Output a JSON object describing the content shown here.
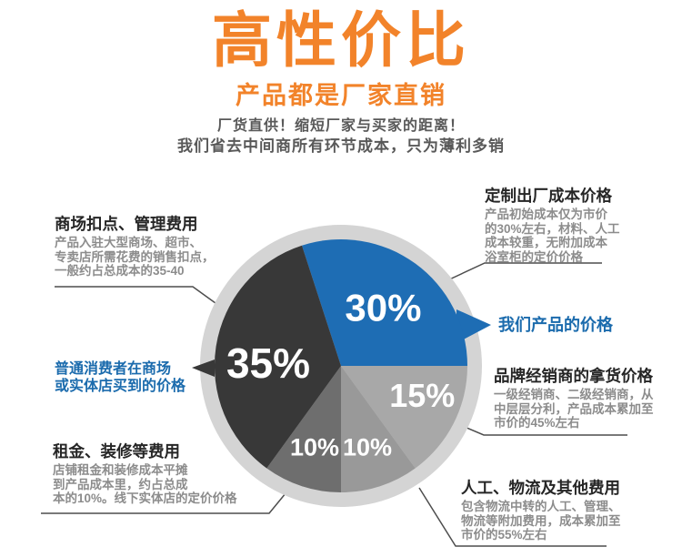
{
  "header": {
    "title": "高性价比",
    "subtitle": "产品都是厂家直销",
    "tagline1": "厂货直供！缩短厂家与买家的距离！",
    "tagline2": "我们省去中间商所有环节成本，只为薄利多销"
  },
  "colors": {
    "accent_orange": "#f2832a",
    "accent_blue": "#1b6bad",
    "title_text": "#262626",
    "body_text": "#8c8c8c",
    "tagline_text": "#595959",
    "ring": "#d4d4d4",
    "connector_line": "#4d4d4d"
  },
  "chart_data": {
    "type": "pie",
    "start_angle_deg": -18,
    "legend_position": "callouts-around-pie",
    "slices": [
      {
        "label": "30%",
        "value": 30,
        "color": "#1e6db4",
        "linked_annotation": "定制出厂成本价格 / 我们产品的价格"
      },
      {
        "label": "15%",
        "value": 15,
        "color": "#a8a8a8",
        "linked_annotation": "品牌经销商的拿货价格"
      },
      {
        "label": "10%",
        "value": 10,
        "color": "#999999",
        "linked_annotation": "人工、物流及其他费用"
      },
      {
        "label": "10%",
        "value": 10,
        "color": "#6e6e6e",
        "linked_annotation": "租金、装修等费用"
      },
      {
        "label": "35%",
        "value": 35,
        "color": "#383838",
        "linked_annotation": "商场扣点、管理费用 / 普通消费者在商场或实体店买到的价格"
      }
    ]
  },
  "annotations": {
    "market_fee": {
      "title": "商场扣点、管理费用",
      "body": "产品入驻大型商场、超市、\n专卖店所需花费的销售扣点，\n一般约占总成本的35-40"
    },
    "consumer_price": {
      "label": "普通消费者在商场\n或实体店买到的价格"
    },
    "rent_fee": {
      "title": "租金、装修等费用",
      "body": "店铺租金和装修成本平摊\n到产品成本里，约占总成\n本的10%。线下实体店的定价价格"
    },
    "factory_cost": {
      "title": "定制出厂成本价格",
      "body": "产品初始成本仅为市价\n的30%左右，材料、人工\n成本较重，无附加成本\n浴室柜的定价价格"
    },
    "our_price": {
      "label": "我们产品的价格"
    },
    "dealer_price": {
      "title": "品牌经销商的拿货价格",
      "body": "一级经销商、二级经销商，从\n中层层分利，产品成本累加至\n市价的45%左右"
    },
    "logistics_fee": {
      "title": "人工、物流及其他费用",
      "body": "包含物流中转的人工、管理、\n物流等附加费用，成本累加至\n市价的55%左右"
    }
  }
}
